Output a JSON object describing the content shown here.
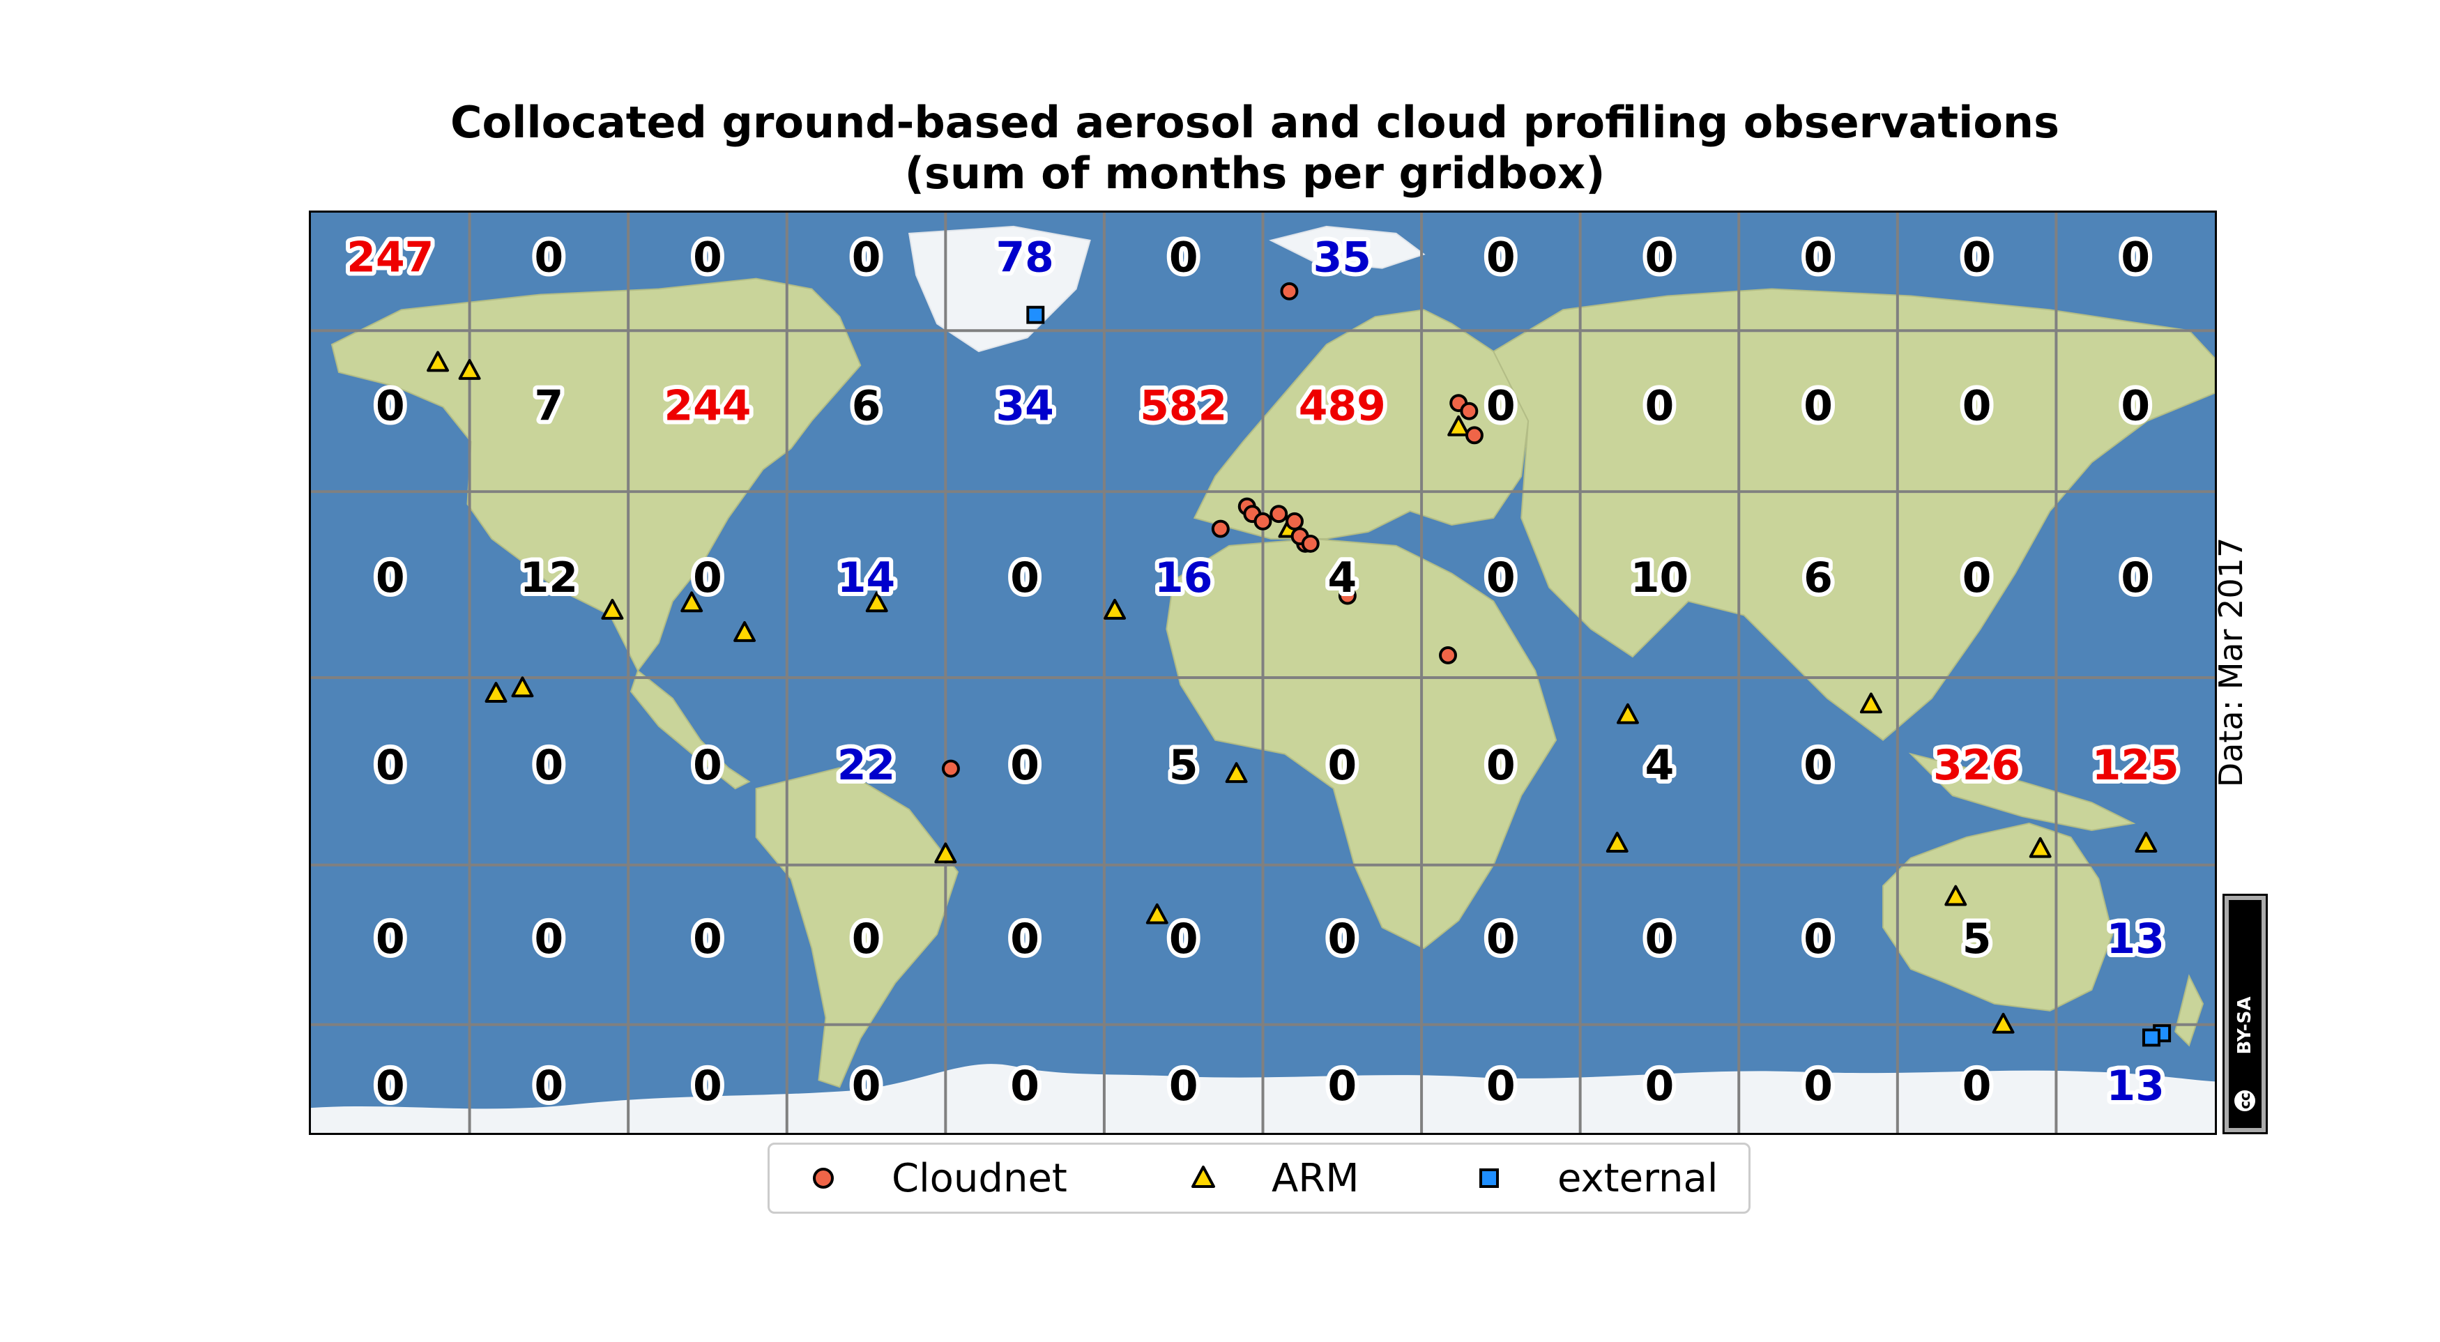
{
  "title": {
    "line1": "Collocated ground-based aerosol and cloud profiling observations",
    "line2": "(sum of months per gridbox)"
  },
  "data_date": "Data: Mar 2017",
  "license": {
    "cc": "cc",
    "label": "BY-SA"
  },
  "legend": {
    "items": [
      {
        "label": "Cloudnet",
        "marker": "circle",
        "color": "#ef6548"
      },
      {
        "label": "ARM",
        "marker": "triangle",
        "color": "#ffd700"
      },
      {
        "label": "external",
        "marker": "square",
        "color": "#1f8fff"
      }
    ]
  },
  "colors": {
    "ocean": "#4f84b8",
    "land": "#c9d49a",
    "ice": "#f1f4f7",
    "grid": "#808080",
    "count_default": "#000000",
    "count_cloudnet": "#ee0000",
    "count_external": "#0000cc"
  },
  "grid": {
    "lon_edges": [
      -180,
      -150,
      -120,
      -90,
      -60,
      -30,
      0,
      30,
      60,
      90,
      120,
      150,
      180
    ],
    "lat_edges": [
      90,
      75,
      55,
      30,
      -5,
      -40,
      -90
    ],
    "rows": [
      [
        {
          "v": "247",
          "c": "red"
        },
        {
          "v": "0"
        },
        {
          "v": "0"
        },
        {
          "v": "0"
        },
        {
          "v": "78",
          "c": "blue"
        },
        {
          "v": "0"
        },
        {
          "v": "35",
          "c": "blue"
        },
        {
          "v": "0"
        },
        {
          "v": "0"
        },
        {
          "v": "0"
        },
        {
          "v": "0"
        },
        {
          "v": "0"
        }
      ],
      [
        {
          "v": "0"
        },
        {
          "v": "7"
        },
        {
          "v": "244",
          "c": "red"
        },
        {
          "v": "6"
        },
        {
          "v": "34",
          "c": "blue"
        },
        {
          "v": "582",
          "c": "red"
        },
        {
          "v": "489",
          "c": "red"
        },
        {
          "v": "0"
        },
        {
          "v": "0"
        },
        {
          "v": "0"
        },
        {
          "v": "0"
        },
        {
          "v": "0"
        }
      ],
      [
        {
          "v": "0"
        },
        {
          "v": "12"
        },
        {
          "v": "0"
        },
        {
          "v": "14",
          "c": "blue"
        },
        {
          "v": "0"
        },
        {
          "v": "16",
          "c": "blue"
        },
        {
          "v": "4"
        },
        {
          "v": "0"
        },
        {
          "v": "10"
        },
        {
          "v": "6"
        },
        {
          "v": "0"
        },
        {
          "v": "0"
        }
      ],
      [
        {
          "v": "0"
        },
        {
          "v": "0"
        },
        {
          "v": "0"
        },
        {
          "v": "22",
          "c": "blue"
        },
        {
          "v": "0"
        },
        {
          "v": "5"
        },
        {
          "v": "0"
        },
        {
          "v": "0"
        },
        {
          "v": "4"
        },
        {
          "v": "0"
        },
        {
          "v": "326",
          "c": "red"
        },
        {
          "v": "125",
          "c": "red"
        }
      ],
      [
        {
          "v": "0"
        },
        {
          "v": "0"
        },
        {
          "v": "0"
        },
        {
          "v": "0"
        },
        {
          "v": "0"
        },
        {
          "v": "0"
        },
        {
          "v": "0"
        },
        {
          "v": "0"
        },
        {
          "v": "0"
        },
        {
          "v": "0"
        },
        {
          "v": "5"
        },
        {
          "v": "13",
          "c": "blue"
        }
      ],
      [
        {
          "v": "0"
        },
        {
          "v": "0"
        },
        {
          "v": "0"
        },
        {
          "v": "0"
        },
        {
          "v": "0"
        },
        {
          "v": "0"
        },
        {
          "v": "0"
        },
        {
          "v": "0"
        },
        {
          "v": "0"
        },
        {
          "v": "0"
        },
        {
          "v": "0"
        },
        {
          "v": "13",
          "c": "blue"
        }
      ]
    ]
  },
  "sites": {
    "cloudnet": [
      [
        5,
        80
      ],
      [
        37,
        66
      ],
      [
        39,
        65
      ],
      [
        40,
        62
      ],
      [
        -3,
        53
      ],
      [
        -2,
        52
      ],
      [
        -8,
        50
      ],
      [
        0,
        51
      ],
      [
        3,
        52
      ],
      [
        6,
        51
      ],
      [
        8,
        48
      ],
      [
        7,
        49
      ],
      [
        9,
        48
      ],
      [
        16,
        41
      ],
      [
        35,
        33
      ],
      [
        -59,
        13
      ]
    ],
    "arm": [
      [
        -156,
        71
      ],
      [
        -150,
        70
      ],
      [
        -98,
        36
      ],
      [
        -73,
        40
      ],
      [
        -28,
        39
      ],
      [
        -123,
        39
      ],
      [
        -145,
        27
      ],
      [
        -140,
        28
      ],
      [
        -108,
        40
      ],
      [
        -60,
        -3
      ],
      [
        -20,
        -16
      ],
      [
        -5,
        12
      ],
      [
        5,
        50
      ],
      [
        37,
        63
      ],
      [
        69,
        23
      ],
      [
        115,
        25
      ],
      [
        67,
        -1
      ],
      [
        147,
        -2
      ],
      [
        131,
        -12
      ],
      [
        167,
        -1
      ],
      [
        140,
        -40
      ]
    ],
    "external": [
      [
        -43,
        77
      ],
      [
        170,
        -44
      ],
      [
        168,
        -46
      ]
    ]
  }
}
